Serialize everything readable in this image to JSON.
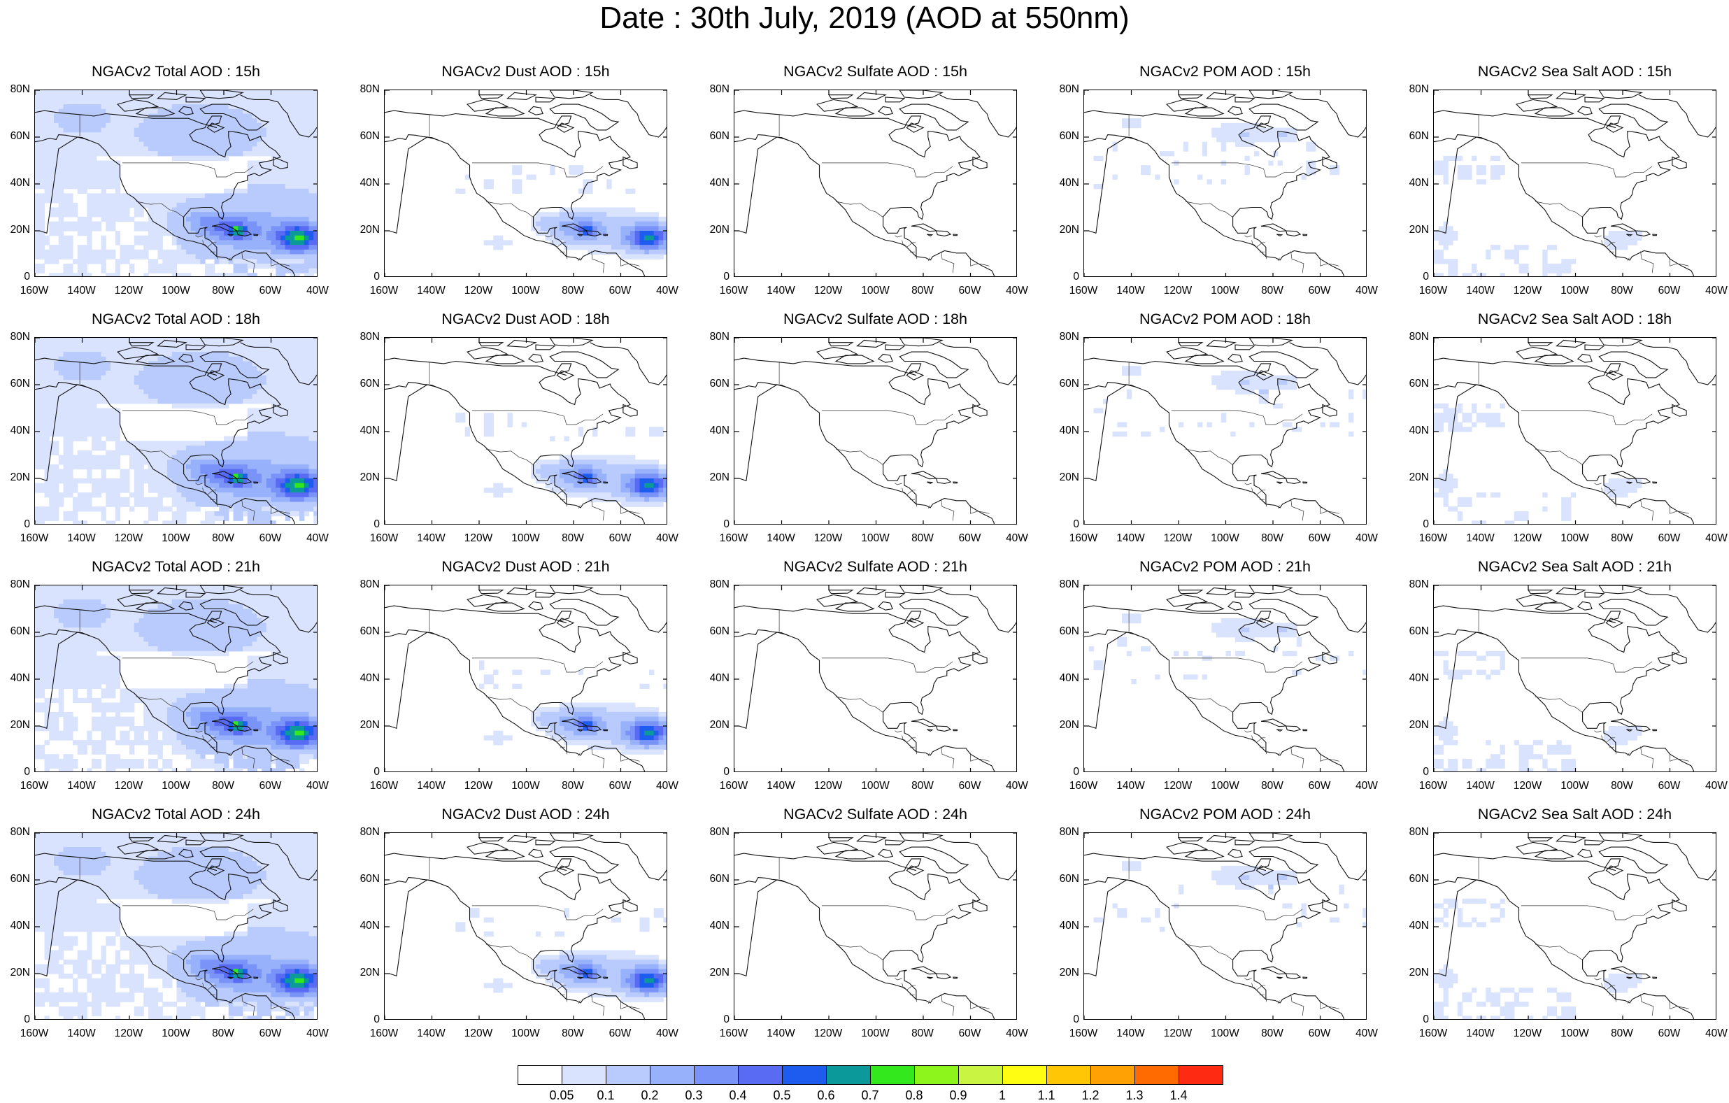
{
  "title": "Date : 30th July, 2019 (AOD at 550nm)",
  "rows": [
    {
      "hour": "15h",
      "panels": [
        "NGACv2 Total AOD : 15h",
        "NGACv2 Dust AOD : 15h",
        "NGACv2 Sulfate AOD : 15h",
        "NGACv2 POM AOD : 15h",
        "NGACv2 Sea Salt AOD : 15h"
      ]
    },
    {
      "hour": "18h",
      "panels": [
        "NGACv2 Total AOD : 18h",
        "NGACv2 Dust AOD : 18h",
        "NGACv2 Sulfate AOD : 18h",
        "NGACv2 POM AOD : 18h",
        "NGACv2 Sea Salt AOD : 18h"
      ]
    },
    {
      "hour": "21h",
      "panels": [
        "NGACv2 Total AOD : 21h",
        "NGACv2 Dust AOD : 21h",
        "NGACv2 Sulfate AOD : 21h",
        "NGACv2 POM AOD : 21h",
        "NGACv2 Sea Salt AOD : 21h"
      ]
    },
    {
      "hour": "24h",
      "panels": [
        "NGACv2 Total AOD : 24h",
        "NGACv2 Dust AOD : 24h",
        "NGACv2 Sulfate AOD : 24h",
        "NGACv2 POM AOD : 24h",
        "NGACv2 Sea Salt  AOD : 24h"
      ]
    }
  ],
  "lat_ticks": [
    "80N",
    "60N",
    "40N",
    "20N",
    "0"
  ],
  "lon_ticks": [
    "160W",
    "140W",
    "120W",
    "100W",
    "80W",
    "60W",
    "40W"
  ],
  "colorbar": {
    "labels": [
      "0.05",
      "0.1",
      "0.2",
      "0.3",
      "0.4",
      "0.5",
      "0.6",
      "0.7",
      "0.8",
      "0.9",
      "1",
      "1.1",
      "1.2",
      "1.3",
      "1.4"
    ],
    "colors": [
      "#ffffff",
      "#d9e3fd",
      "#b9cbfc",
      "#98b1fb",
      "#7a93f8",
      "#5a6bf3",
      "#1e5cf0",
      "#0b9a99",
      "#33e81c",
      "#8ef51c",
      "#c9f542",
      "#fffd12",
      "#ffc605",
      "#ffa005",
      "#ff6b00",
      "#ff2a12"
    ]
  },
  "chart_data": {
    "type": "heatmap",
    "title": "Date : 30th July, 2019 (AOD at 550nm)",
    "variables": [
      "Total AOD",
      "Dust AOD",
      "Sulfate AOD",
      "POM AOD",
      "Sea Salt AOD"
    ],
    "times": [
      "15h",
      "18h",
      "21h",
      "24h"
    ],
    "lon_range": [
      -160,
      -40
    ],
    "lat_range": [
      0,
      80
    ],
    "levels": [
      0.05,
      0.1,
      0.2,
      0.3,
      0.4,
      0.5,
      0.6,
      0.7,
      0.8,
      0.9,
      1.0,
      1.1,
      1.2,
      1.3,
      1.4
    ],
    "features": [
      {
        "variable": "Total AOD",
        "region": "Saharan dust plume, tropical Atlantic 60W-40W, 10N-25N",
        "approx_value": 0.6
      },
      {
        "variable": "Total AOD",
        "region": "Caribbean / Gulf of Mexico 90W-65W, 15N-30N",
        "approx_value": 0.45
      },
      {
        "variable": "Total AOD",
        "region": "Hudson Bay / northern Canada 100W-70W, 55N-70N",
        "approx_value": 0.2
      },
      {
        "variable": "Dust AOD",
        "region": "Tropical Atlantic 60W-40W, 10N-25N",
        "approx_value": 0.6
      },
      {
        "variable": "POM AOD",
        "region": "Northern Canada 110W-70W, 55N-70N",
        "approx_value": 0.15
      },
      {
        "variable": "Sea Salt AOD",
        "region": "Caribbean / Gulf of Mexico",
        "approx_value": 0.1
      }
    ]
  }
}
